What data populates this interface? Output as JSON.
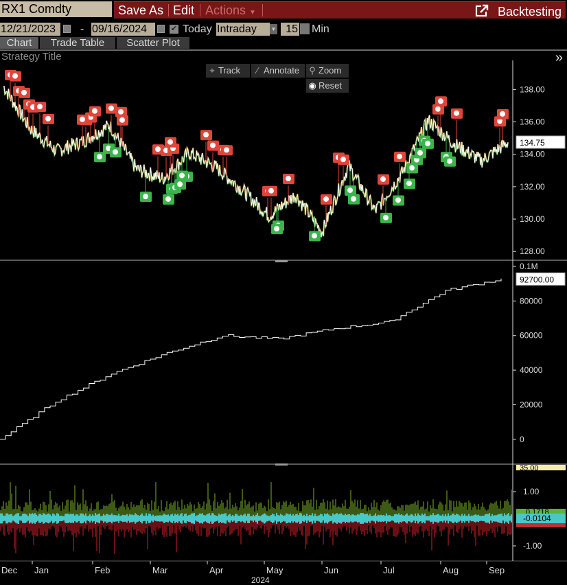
{
  "toolbar": {
    "ticker": "RX1 Comdty",
    "save_as": "Save As",
    "edit": "Edit",
    "actions": "Actions",
    "backtesting": "Backtesting"
  },
  "date_bar": {
    "start_date": "12/21/2023",
    "dash": "-",
    "end_date": "09/16/2024",
    "today_label": "Today",
    "interval": "Intraday",
    "period": "15",
    "unit": "Min"
  },
  "tabs": [
    "Chart",
    "Trade Table",
    "Scatter Plot"
  ],
  "strategy_title": "Strategy Title",
  "chart_tools": {
    "track": "Track",
    "annotate": "Annotate",
    "zoom": "Zoom",
    "reset": "Reset"
  },
  "chart_data": [
    {
      "type": "line",
      "ylim": [
        127.5,
        139.5
      ],
      "y_ticks": [
        "138.00",
        "136.00",
        "134.00",
        "132.00",
        "130.00",
        "128.00"
      ],
      "last_value_label": "134.75",
      "series": [
        {
          "x": [
            "Dec",
            "Dec",
            "Jan",
            "Jan",
            "Feb",
            "Feb",
            "Mar",
            "Mar",
            "Apr",
            "Apr",
            "May",
            "May",
            "Jun",
            "Jun",
            "Jul",
            "Jul",
            "Aug",
            "Aug",
            "Sep",
            "Sep"
          ],
          "values": [
            138.2,
            135.6,
            134.2,
            134.8,
            135.8,
            133.1,
            132.5,
            134.1,
            133.2,
            131.8,
            130.2,
            131.5,
            129.2,
            133.3,
            130.5,
            132.8,
            136.1,
            134.6,
            133.6,
            134.75
          ]
        }
      ],
      "buy_markers": 25,
      "sell_markers": 36
    },
    {
      "type": "line",
      "ylim": [
        -10000,
        100000
      ],
      "y_ticks": [
        "0.1M",
        "80000",
        "60000",
        "40000",
        "20000",
        "0"
      ],
      "last_value_label": "92700.00",
      "series": [
        {
          "x": [
            "Dec",
            "Jan",
            "Feb",
            "Mar",
            "Apr",
            "May",
            "Jun",
            "Jul",
            "Aug",
            "Sep"
          ],
          "values": [
            0,
            22000,
            38000,
            50000,
            60000,
            58000,
            64000,
            68000,
            86000,
            92700
          ]
        }
      ]
    },
    {
      "type": "area",
      "y_ticks": [
        "1.00",
        "-1.00"
      ],
      "top_label": "35.00",
      "value_labels": [
        "0.1718",
        "-0.0104"
      ]
    }
  ],
  "x_axis": {
    "months": [
      "Dec",
      "Jan",
      "Feb",
      "Mar",
      "Apr",
      "May",
      "Jun",
      "Jul",
      "Aug",
      "Sep"
    ],
    "year": "2024"
  },
  "colors": {
    "sell_marker": "#e0453a",
    "buy_marker": "#3bb44a",
    "price_line": "#ffffff",
    "indicator_line": "#f0a030",
    "toolbar_red": "#7a1518"
  }
}
